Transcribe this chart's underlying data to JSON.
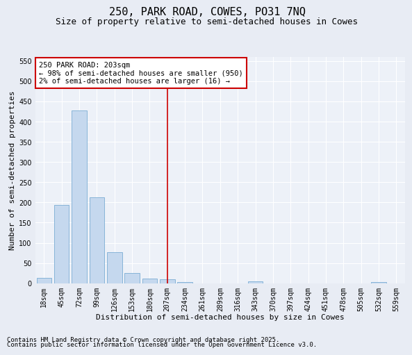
{
  "title": "250, PARK ROAD, COWES, PO31 7NQ",
  "subtitle": "Size of property relative to semi-detached houses in Cowes",
  "xlabel": "Distribution of semi-detached houses by size in Cowes",
  "ylabel": "Number of semi-detached properties",
  "footnote1": "Contains HM Land Registry data © Crown copyright and database right 2025.",
  "footnote2": "Contains public sector information licensed under the Open Government Licence v3.0.",
  "categories": [
    "18sqm",
    "45sqm",
    "72sqm",
    "99sqm",
    "126sqm",
    "153sqm",
    "180sqm",
    "207sqm",
    "234sqm",
    "261sqm",
    "289sqm",
    "316sqm",
    "343sqm",
    "370sqm",
    "397sqm",
    "424sqm",
    "451sqm",
    "478sqm",
    "505sqm",
    "532sqm",
    "559sqm"
  ],
  "values": [
    13,
    194,
    428,
    212,
    77,
    26,
    12,
    9,
    3,
    0,
    0,
    0,
    4,
    0,
    0,
    0,
    0,
    0,
    0,
    3,
    0
  ],
  "bar_color": "#c5d8ee",
  "bar_edge_color": "#7aadd4",
  "vline_x_index": 7,
  "vline_color": "#cc0000",
  "annotation_line1": "250 PARK ROAD: 203sqm",
  "annotation_line2": "← 98% of semi-detached houses are smaller (950)",
  "annotation_line3": "2% of semi-detached houses are larger (16) →",
  "annotation_box_color": "#ffffff",
  "annotation_box_edge": "#cc0000",
  "ylim": [
    0,
    560
  ],
  "yticks": [
    0,
    50,
    100,
    150,
    200,
    250,
    300,
    350,
    400,
    450,
    500,
    550
  ],
  "bg_color": "#e8ecf4",
  "plot_bg_color": "#edf1f8",
  "grid_color": "#ffffff",
  "title_fontsize": 11,
  "subtitle_fontsize": 9,
  "axis_label_fontsize": 8,
  "tick_fontsize": 7,
  "annotation_fontsize": 7.5,
  "footnote_fontsize": 6.5
}
